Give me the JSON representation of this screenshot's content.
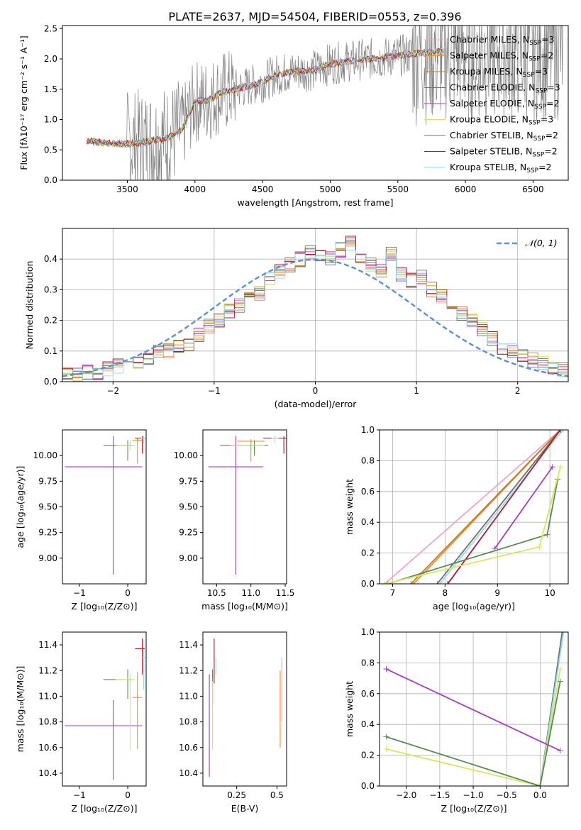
{
  "title": "PLATE=2637, MJD=54504, FIBERID=0553, z=0.396",
  "colors": {
    "chabrier_miles": "#f0a3c8",
    "salpeter_miles": "#e8922e",
    "kroupa_miles": "#c47c2a",
    "chabrier_elodie": "#5a8a5a",
    "salpeter_elodie": "#a63dbf",
    "kroupa_elodie": "#d6e85a",
    "chabrier_stelib": "#707070",
    "salpeter_stelib": "#b0182a",
    "kroupa_stelib": "#8fe0e8",
    "gauss": "#5b8fd6",
    "data": "#808080"
  },
  "chart_data": [
    {
      "id": "spectrum",
      "type": "line",
      "xlabel": "wavelength [Angstrom, rest frame]",
      "ylabel": "Flux [fλ10⁻¹⁷ erg cm⁻² s⁻¹ A⁻¹]",
      "xlim": [
        3020,
        6760
      ],
      "ylim": [
        0,
        2.55
      ],
      "xticks": [
        3500,
        4000,
        4500,
        5000,
        5500,
        6000,
        6500
      ],
      "yticks": [
        0.0,
        0.5,
        1.0,
        1.5,
        2.0,
        2.5
      ],
      "continuum": {
        "x": [
          3200,
          3300,
          3400,
          3500,
          3600,
          3700,
          3800,
          3900,
          4000,
          4100,
          4200,
          4300,
          4400,
          4500,
          4600,
          4700,
          4800,
          4900,
          5000,
          5100,
          5200,
          5300,
          5400,
          5500,
          5600,
          5700,
          5800,
          5850
        ],
        "y": [
          0.65,
          0.62,
          0.6,
          0.6,
          0.62,
          0.66,
          0.7,
          0.82,
          1.3,
          1.32,
          1.45,
          1.5,
          1.55,
          1.62,
          1.74,
          1.78,
          1.8,
          1.82,
          1.92,
          1.95,
          1.98,
          2.0,
          2.02,
          2.05,
          2.08,
          2.1,
          2.12,
          2.13
        ]
      },
      "legend": [
        "Chabrier MILES, N<sub>SSP</sub>=3",
        "Salpeter MILES, N<sub>SSP</sub>=2",
        "Kroupa MILES, N<sub>SSP</sub>=3",
        "Chabrier ELODIE, N<sub>SSP</sub>=3",
        "Salpeter ELODIE, N<sub>SSP</sub>=2",
        "Kroupa ELODIE, N<sub>SSP</sub>=3",
        "Chabrier STELIB, N<sub>SSP</sub>=2",
        "Salpeter STELIB, N<sub>SSP</sub>=2",
        "Kroupa STELIB, N<sub>SSP</sub>=2"
      ]
    },
    {
      "id": "residuals",
      "type": "line",
      "xlabel": "(data-model)/error",
      "ylabel": "Normed distribution",
      "xlim": [
        -2.5,
        2.5
      ],
      "ylim": [
        0,
        0.5
      ],
      "xticks": [
        -2,
        -1,
        0,
        1,
        2
      ],
      "yticks": [
        0.0,
        0.1,
        0.2,
        0.3,
        0.4
      ],
      "legend": [
        "𝒩(0, 1)"
      ],
      "bin_width": 0.1,
      "hist_x_start": -2.5,
      "hist_values": [
        0.02,
        0.02,
        0.03,
        0.03,
        0.04,
        0.05,
        0.05,
        0.06,
        0.08,
        0.1,
        0.1,
        0.12,
        0.12,
        0.15,
        0.18,
        0.2,
        0.23,
        0.25,
        0.27,
        0.29,
        0.34,
        0.36,
        0.38,
        0.4,
        0.42,
        0.41,
        0.4,
        0.43,
        0.45,
        0.4,
        0.38,
        0.36,
        0.42,
        0.35,
        0.33,
        0.34,
        0.3,
        0.28,
        0.24,
        0.22,
        0.2,
        0.17,
        0.14,
        0.11,
        0.1,
        0.08,
        0.07,
        0.06,
        0.05,
        0.04
      ]
    },
    {
      "id": "age-vs-z",
      "type": "scatter",
      "xlabel": "Z [log₁₀(Z/Z⊙)]",
      "ylabel": "age  [log₁₀(age/yr)]",
      "xlim": [
        -1.35,
        0.38
      ],
      "ylim": [
        8.75,
        10.25
      ],
      "xticks": [
        -1,
        0
      ],
      "yticks": [
        9.0,
        9.25,
        9.5,
        9.75,
        10.0
      ]
    },
    {
      "id": "age-vs-mass",
      "type": "scatter",
      "xlabel": "mass [log₁₀(M/M⊙)]",
      "xlim": [
        10.3,
        11.52
      ],
      "ylim": [
        8.75,
        10.25
      ],
      "xticks": [
        10.5,
        11.0,
        11.5
      ],
      "yticks": [
        9.0,
        9.25,
        9.5,
        9.75,
        10.0
      ]
    },
    {
      "id": "massweight-vs-age",
      "type": "line",
      "xlabel": "age  [log₁₀(age/yr)]",
      "ylabel": "mass weight",
      "xlim": [
        6.75,
        10.35
      ],
      "ylim": [
        0,
        1
      ],
      "xticks": [
        7,
        8,
        9,
        10
      ],
      "yticks": [
        0.0,
        0.2,
        0.4,
        0.6,
        0.8,
        1.0
      ]
    },
    {
      "id": "mass-vs-z",
      "type": "scatter",
      "xlabel": "Z [log₁₀(Z/Z⊙)]",
      "ylabel": "mass [log₁₀(M/M⊙)]",
      "xlim": [
        -1.35,
        0.38
      ],
      "ylim": [
        10.3,
        11.5
      ],
      "xticks": [
        -1,
        0
      ],
      "yticks": [
        10.4,
        10.6,
        10.8,
        11.0,
        11.2,
        11.4
      ]
    },
    {
      "id": "mass-vs-ebv",
      "type": "scatter",
      "xlabel": "E(B-V)",
      "xlim": [
        0.04,
        0.56
      ],
      "ylim": [
        10.3,
        11.5
      ],
      "xticks": [
        0.25,
        0.5
      ],
      "yticks": [
        10.4,
        10.6,
        10.8,
        11.0,
        11.2,
        11.4
      ]
    },
    {
      "id": "massweight-vs-z",
      "type": "line",
      "xlabel": "Z [log₁₀(Z/Z⊙)]",
      "ylabel": "mass weight",
      "xlim": [
        -2.4,
        0.42
      ],
      "ylim": [
        0,
        1
      ],
      "xticks": [
        -2.0,
        -1.5,
        -1.0,
        -0.5,
        0.0
      ],
      "yticks": [
        0.0,
        0.2,
        0.4,
        0.6,
        0.8,
        1.0
      ]
    }
  ]
}
